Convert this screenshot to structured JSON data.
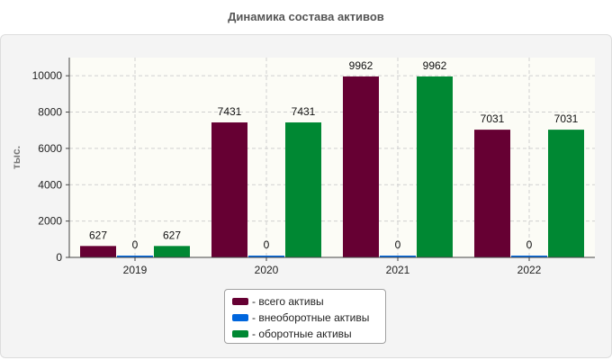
{
  "chart_data": {
    "type": "bar",
    "title": "Динамика состава активов",
    "xlabel": "",
    "ylabel": "тыс.",
    "ylim": [
      0,
      11000
    ],
    "yticks": [
      0,
      2000,
      4000,
      6000,
      8000,
      10000
    ],
    "categories": [
      "2019",
      "2020",
      "2021",
      "2022"
    ],
    "series": [
      {
        "name": "- всего активы",
        "color": "#660033",
        "values": [
          627,
          7431,
          9962,
          7031
        ]
      },
      {
        "name": "- внеоборотные активы",
        "color": "#0066dd",
        "values": [
          0,
          0,
          0,
          0
        ]
      },
      {
        "name": "- оборотные активы",
        "color": "#008833",
        "values": [
          627,
          7431,
          9962,
          7031
        ]
      }
    ],
    "grid": true,
    "legend_position": "bottom-center"
  }
}
